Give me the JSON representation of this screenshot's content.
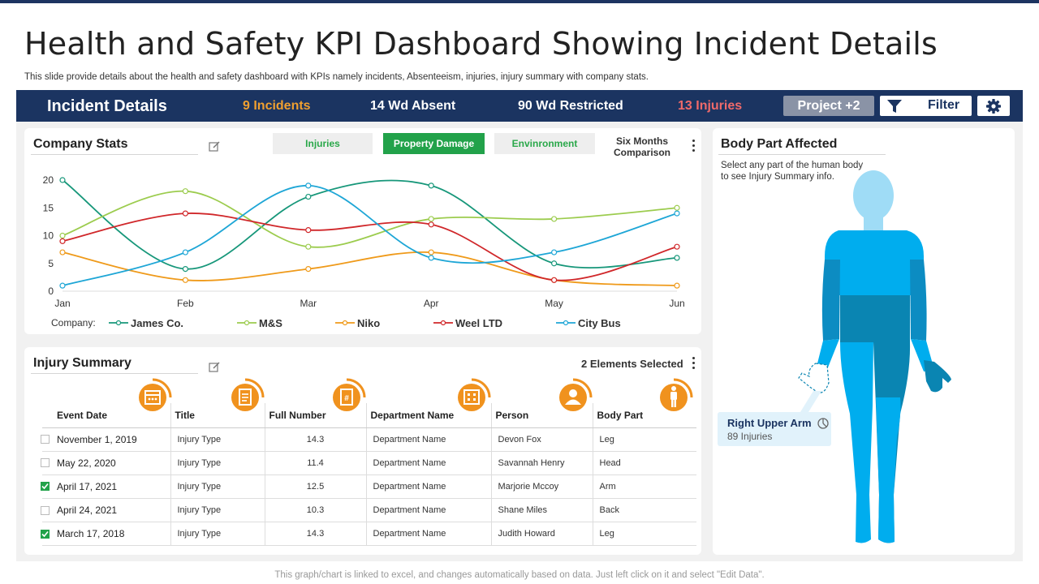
{
  "page": {
    "title": "Health and Safety KPI Dashboard Showing Incident Details",
    "subtitle": "This slide provide details about the health and safety dashboard with KPIs namely incidents, Absenteeism, injuries, injury summary with company stats.",
    "footer": "This graph/chart is linked to excel,  and changes automatically based on data. Just left click on it and select \"Edit Data\"."
  },
  "header": {
    "title": "Incident Details",
    "kpis": [
      {
        "label": "9 Incidents",
        "color": "#f0a030"
      },
      {
        "label": "14 Wd Absent",
        "color": "#ffffff"
      },
      {
        "label": "90 Wd Restricted",
        "color": "#ffffff"
      },
      {
        "label": "13 Injuries",
        "color": "#f06a6a"
      }
    ],
    "project_label": "Project +2",
    "filter_label": "Filter",
    "settings_icon": "gear-icon",
    "filter_icon": "funnel-icon"
  },
  "company_stats": {
    "title": "Company Stats",
    "buttons": [
      {
        "label": "Injuries",
        "active": false
      },
      {
        "label": "Property Damage",
        "active": true
      },
      {
        "label": "Envinronment",
        "active": false
      }
    ],
    "comparison_label_1": "Six Months",
    "comparison_label_2": "Comparison",
    "legend_prefix": "Company:"
  },
  "chart_data": {
    "type": "line",
    "x": [
      "Jan",
      "Feb",
      "Mar",
      "Apr",
      "May",
      "Jun"
    ],
    "ylim": [
      0,
      20
    ],
    "yticks": [
      "0",
      "5",
      "10",
      "15",
      "20"
    ],
    "legend_placement": "bottom",
    "grid": false,
    "series": [
      {
        "name": "James Co.",
        "color": "#17977a",
        "values": [
          20,
          4,
          17,
          19,
          5,
          6
        ]
      },
      {
        "name": "M&S",
        "color": "#9ccc4e",
        "values": [
          10,
          18,
          8,
          13,
          13,
          15
        ]
      },
      {
        "name": "Niko",
        "color": "#ef9a1a",
        "values": [
          7,
          2,
          4,
          7,
          2,
          1
        ]
      },
      {
        "name": "Weel LTD",
        "color": "#d0272a",
        "values": [
          9,
          14,
          11,
          12,
          2,
          8
        ]
      },
      {
        "name": "City Bus",
        "color": "#1ea6d6",
        "values": [
          1,
          7,
          19,
          6,
          7,
          14
        ]
      }
    ]
  },
  "injury_summary": {
    "title": "Injury Summary",
    "selected_label": "2 Elements Selected",
    "columns": [
      "Event Date",
      "Title",
      "Full Number",
      "Department Name",
      "Person",
      "Body Part"
    ],
    "column_icons": [
      "calendar-icon",
      "document-icon",
      "hash-document-icon",
      "building-icon",
      "person-icon",
      "body-icon"
    ],
    "rows": [
      {
        "date": "November 1, 2019",
        "title": "Injury Type",
        "number": "14.3",
        "dept": "Department Name",
        "person": "Devon Fox",
        "part": "Leg",
        "checked": false
      },
      {
        "date": "May 22, 2020",
        "title": "Injury Type",
        "number": "11.4",
        "dept": "Department Name",
        "person": "Savannah Henry",
        "part": "Head",
        "checked": false
      },
      {
        "date": "April 17, 2021",
        "title": "Injury Type",
        "number": "12.5",
        "dept": "Department Name",
        "person": "Marjorie Mccoy",
        "part": "Arm",
        "checked": true
      },
      {
        "date": "April 24, 2021",
        "title": "Injury Type",
        "number": "10.3",
        "dept": "Department Name",
        "person": "Shane Miles",
        "part": "Back",
        "checked": false
      },
      {
        "date": "March 17, 2018",
        "title": "Injury Type",
        "number": "14.3",
        "dept": "Department Name",
        "person": "Judith Howard",
        "part": "Leg",
        "checked": true
      }
    ]
  },
  "body_part": {
    "title": "Body Part Affected",
    "desc_line1": "Select any part of the human body",
    "desc_line2": "to see Injury Summary info.",
    "callout_title": "Right Upper Arm",
    "callout_value": "89 Injuries",
    "callout_icon": "pie-icon"
  }
}
